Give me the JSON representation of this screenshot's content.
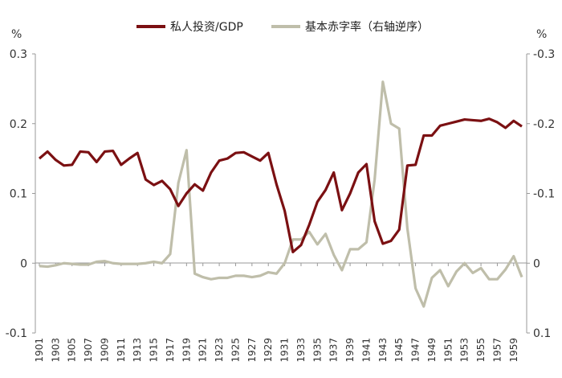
{
  "chart_data": {
    "type": "line",
    "left_unit": "%",
    "right_unit": "%",
    "left_axis": {
      "ylim": [
        -0.1,
        0.3
      ],
      "ticks": [
        "-0.1",
        "0",
        "0.1",
        "0.2",
        "0.3"
      ]
    },
    "right_axis": {
      "ylim": [
        0.1,
        -0.3
      ],
      "reversed": true,
      "ticks": [
        "0.1",
        "0",
        "-0.1",
        "-0.2",
        "-0.3"
      ]
    },
    "x": [
      1901,
      1902,
      1903,
      1904,
      1905,
      1906,
      1907,
      1908,
      1909,
      1910,
      1911,
      1912,
      1913,
      1914,
      1915,
      1916,
      1917,
      1918,
      1919,
      1920,
      1921,
      1922,
      1923,
      1924,
      1925,
      1926,
      1927,
      1928,
      1929,
      1930,
      1931,
      1932,
      1933,
      1934,
      1935,
      1936,
      1937,
      1938,
      1939,
      1940,
      1941,
      1942,
      1943,
      1944,
      1945,
      1946,
      1947,
      1948,
      1949,
      1950,
      1951,
      1952,
      1953,
      1954,
      1955,
      1956,
      1957,
      1958,
      1959,
      1960
    ],
    "x_tick_labels": [
      "1901",
      "1903",
      "1905",
      "1907",
      "1909",
      "1911",
      "1913",
      "1915",
      "1917",
      "1919",
      "1921",
      "1923",
      "1925",
      "1927",
      "1929",
      "1931",
      "1933",
      "1935",
      "1937",
      "1939",
      "1941",
      "1943",
      "1945",
      "1947",
      "1949",
      "1951",
      "1953",
      "1955",
      "1957",
      "1959"
    ],
    "legend_position": "top",
    "series": [
      {
        "name": "私人投资/GDP",
        "color": "#7b1012",
        "axis": "left",
        "values": [
          0.15,
          0.16,
          0.148,
          0.14,
          0.141,
          0.16,
          0.159,
          0.145,
          0.16,
          0.161,
          0.141,
          0.15,
          0.158,
          0.12,
          0.112,
          0.118,
          0.106,
          0.082,
          0.1,
          0.113,
          0.104,
          0.13,
          0.147,
          0.15,
          0.158,
          0.159,
          0.153,
          0.147,
          0.158,
          0.113,
          0.075,
          0.016,
          0.026,
          0.055,
          0.088,
          0.105,
          0.13,
          0.076,
          0.1,
          0.13,
          0.142,
          0.06,
          0.028,
          0.032,
          0.048,
          0.14,
          0.141,
          0.183,
          0.183,
          0.197,
          0.2,
          0.203,
          0.206,
          0.205,
          0.204,
          0.207,
          0.202,
          0.194,
          0.204,
          0.196
        ]
      },
      {
        "name": "基本赤字率（右轴逆序）",
        "color": "#bfbeaa",
        "axis": "right",
        "values": [
          0.004,
          0.005,
          0.003,
          0.0,
          0.001,
          0.002,
          0.002,
          -0.002,
          -0.003,
          0.0,
          0.001,
          0.001,
          0.001,
          0.0,
          -0.002,
          0.0,
          -0.013,
          -0.115,
          -0.162,
          0.015,
          0.02,
          0.023,
          0.021,
          0.021,
          0.018,
          0.018,
          0.02,
          0.018,
          0.013,
          0.015,
          0.0,
          -0.034,
          -0.034,
          -0.045,
          -0.027,
          -0.042,
          -0.012,
          0.01,
          -0.02,
          -0.02,
          -0.03,
          -0.12,
          -0.26,
          -0.2,
          -0.193,
          -0.05,
          0.036,
          0.062,
          0.021,
          0.01,
          0.033,
          0.012,
          0.0,
          0.014,
          0.007,
          0.023,
          0.023,
          0.009,
          -0.01,
          0.02
        ]
      }
    ]
  }
}
